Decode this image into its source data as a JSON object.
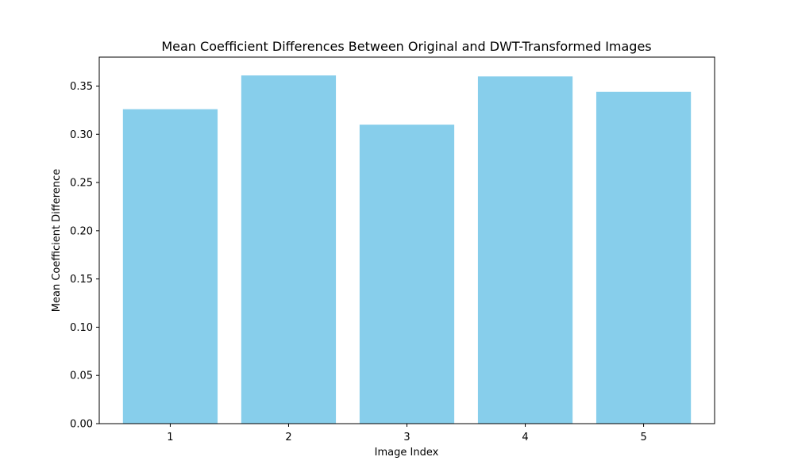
{
  "chart_data": {
    "type": "bar",
    "title": "Mean Coefficient Differences Between Original and DWT-Transformed Images",
    "xlabel": "Image Index",
    "ylabel": "Mean Coefficient Difference",
    "categories": [
      "1",
      "2",
      "3",
      "4",
      "5"
    ],
    "values": [
      0.326,
      0.361,
      0.31,
      0.36,
      0.344
    ],
    "ylim": [
      0,
      0.38
    ],
    "yticks": [
      0.0,
      0.05,
      0.1,
      0.15,
      0.2,
      0.25,
      0.3,
      0.35
    ],
    "ytick_labels": [
      "0.00",
      "0.05",
      "0.10",
      "0.15",
      "0.20",
      "0.25",
      "0.30",
      "0.35"
    ],
    "bar_color": "#87ceeb",
    "grid": false,
    "legend": "none"
  }
}
